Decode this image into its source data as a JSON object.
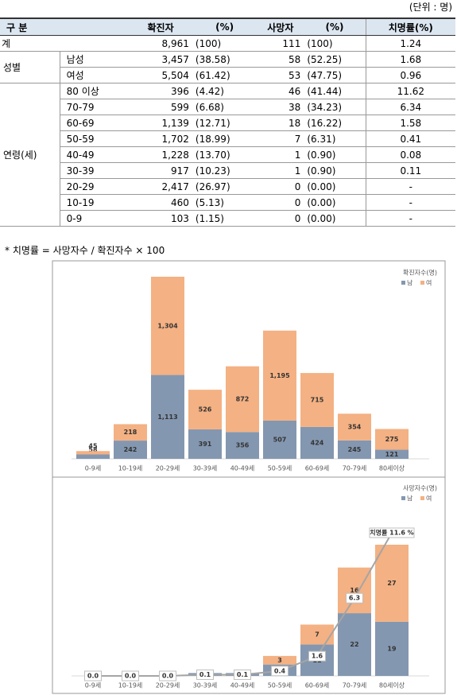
{
  "unit": "(단위 : 명)",
  "table": {
    "header": [
      "구 분",
      "확진자",
      "(%)",
      "사망자",
      "(%)",
      "치명률(%)"
    ],
    "rows": [
      [
        "계",
        "8,961",
        "(100)",
        "111",
        "(100)",
        "1.24"
      ],
      [
        "성별",
        "남성",
        "3,457",
        "(38.58)",
        "58",
        "(52.25)",
        "1.68"
      ],
      [
        "여성",
        "5,504",
        "(61.42)",
        "53",
        "(47.75)",
        "0.96"
      ],
      [
        "연령(세)",
        "80 이상",
        "396",
        "(4.42)",
        "46",
        "(41.44)",
        "11.62"
      ],
      [
        "70-79",
        "599",
        "(6.68)",
        "38",
        "(34.23)",
        "6.34"
      ],
      [
        "60-69",
        "1,139",
        "(12.71)",
        "18",
        "(16.22)",
        "1.58"
      ],
      [
        "50-59",
        "1,702",
        "(18.99)",
        "7",
        "(6.31)",
        "0.41"
      ],
      [
        "40-49",
        "1,228",
        "(13.70)",
        "1",
        "(0.90)",
        "0.08"
      ],
      [
        "30-39",
        "917",
        "(10.23)",
        "1",
        "(0.90)",
        "0.11"
      ],
      [
        "20-29",
        "2,417",
        "(26.97)",
        "0",
        "(0.00)",
        "-"
      ],
      [
        "10-19",
        "460",
        "(5.13)",
        "0",
        "(0.00)",
        "-"
      ],
      [
        "0-9",
        "103",
        "(1.15)",
        "0",
        "(0.00)",
        "-"
      ]
    ]
  },
  "footnote": "* 치명률 = 사망자수 / 확진자수 × 100",
  "chart_data": [
    {
      "type": "bar",
      "stacked": true,
      "title": "확진자수(명)",
      "categories": [
        "0-9세",
        "10-19세",
        "20-29세",
        "30-39세",
        "40-49세",
        "50-59세",
        "60-69세",
        "70-79세",
        "80세이상"
      ],
      "series": [
        {
          "name": "남",
          "color": "#8497b0",
          "values": [
            58,
            242,
            1113,
            391,
            356,
            507,
            424,
            245,
            121
          ],
          "value_labels": [
            "58",
            "242",
            "1,113",
            "391",
            "356",
            "507",
            "424",
            "245",
            "121"
          ]
        },
        {
          "name": "여",
          "color": "#f4b183",
          "values": [
            45,
            218,
            1304,
            526,
            872,
            1195,
            715,
            354,
            275
          ],
          "value_labels": [
            "45",
            "218",
            "1,304",
            "526",
            "872",
            "1,195",
            "715",
            "354",
            "275"
          ]
        }
      ]
    },
    {
      "type": "bar",
      "stacked": true,
      "title": "사망자수(명)",
      "categories": [
        "0-9세",
        "10-19세",
        "20-29세",
        "30-39세",
        "40-49세",
        "50-59세",
        "60-69세",
        "70-79세",
        "80세이상"
      ],
      "series": [
        {
          "name": "남",
          "color": "#8497b0",
          "values": [
            0,
            0,
            0,
            1,
            1,
            4,
            11,
            22,
            19
          ]
        },
        {
          "name": "여",
          "color": "#f4b183",
          "values": [
            0,
            0,
            0,
            0,
            0,
            3,
            7,
            16,
            27
          ]
        },
        {
          "type": "line",
          "axis": "y2",
          "color": "#a5a5a5",
          "values": [
            0,
            0,
            0,
            0.1,
            0.1,
            0.4,
            1.6,
            6.3,
            11.6
          ],
          "value_labels": [
            "0.0",
            "0.0",
            "0.0",
            "0.1",
            "0.1",
            "0.4",
            "1.6",
            "6.3",
            "치명률 11.6 %"
          ]
        }
      ]
    }
  ]
}
